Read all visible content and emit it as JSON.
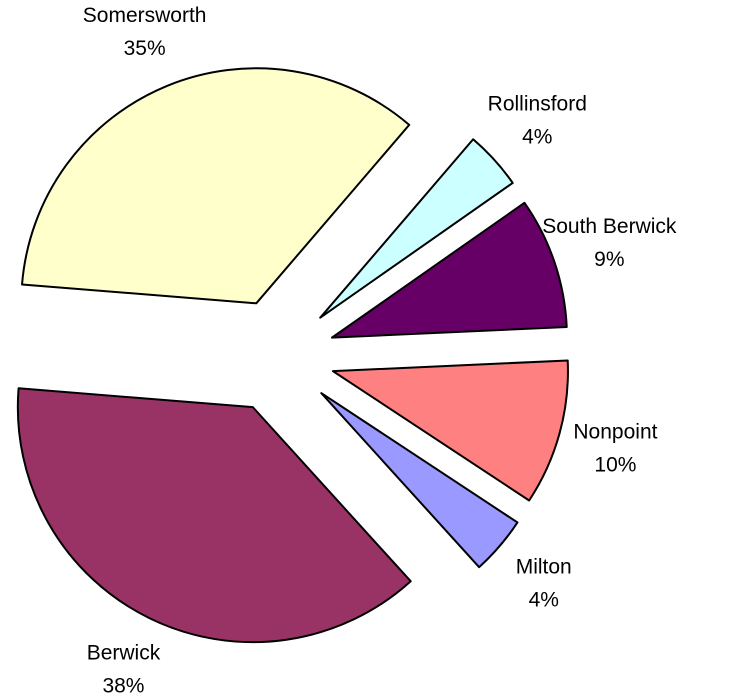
{
  "chart_data": {
    "type": "pie",
    "categories": [
      "Somersworth",
      "Rollinsford",
      "South Berwick",
      "Nonpoint",
      "Milton",
      "Berwick"
    ],
    "values": [
      35,
      4,
      9,
      10,
      4,
      38
    ],
    "value_labels": [
      "35%",
      "4%",
      "9%",
      "10%",
      "4%",
      "38%"
    ],
    "colors": [
      "#ffffcc",
      "#ccffff",
      "#660066",
      "#ff8080",
      "#9999ff",
      "#993366"
    ],
    "exploded": true
  }
}
